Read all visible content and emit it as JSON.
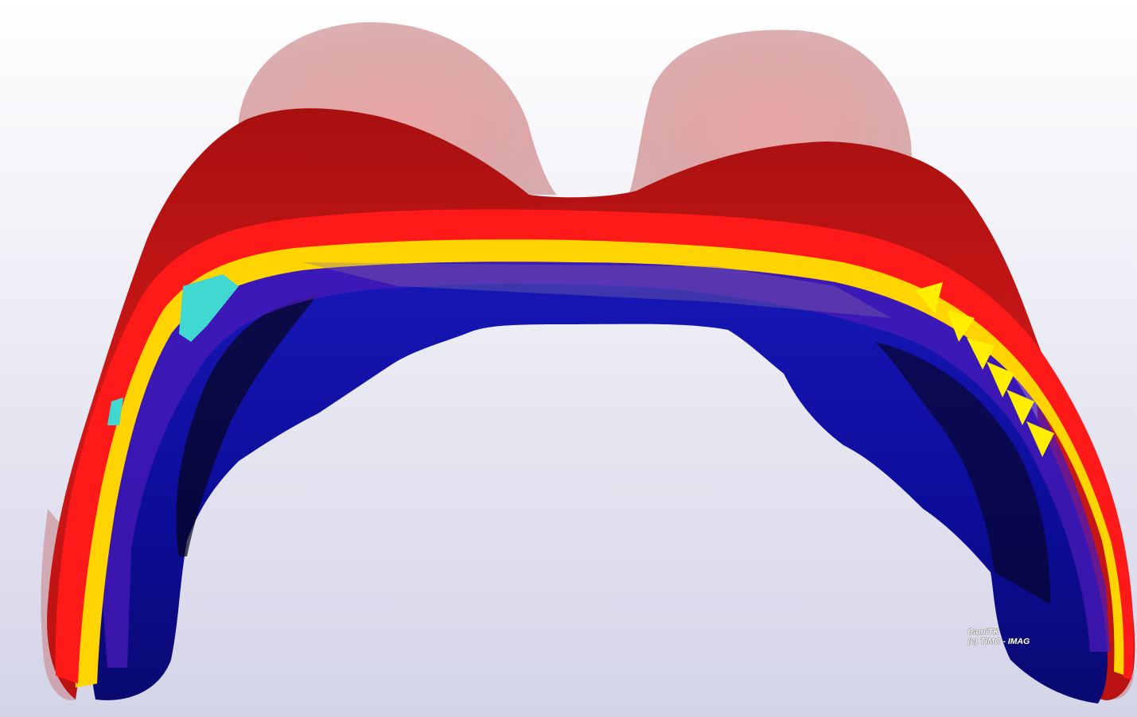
{
  "viewer": {
    "colors": {
      "background_top": "#ffffff",
      "background_bottom": "#d4d4e8",
      "translucent_surface": "#e8a0a0",
      "outer_surface": "#c41414",
      "rim_red": "#ff1a1a",
      "rim_yellow": "#ffd400",
      "inner_surface": "#1010a8",
      "inner_violet": "#4a1ab8",
      "highlight_cyan": "#40d8d0",
      "shadow": "#05051a"
    }
  },
  "watermark": {
    "line1": "CamiTK",
    "line2": "(c) TIMC - IMAG"
  }
}
